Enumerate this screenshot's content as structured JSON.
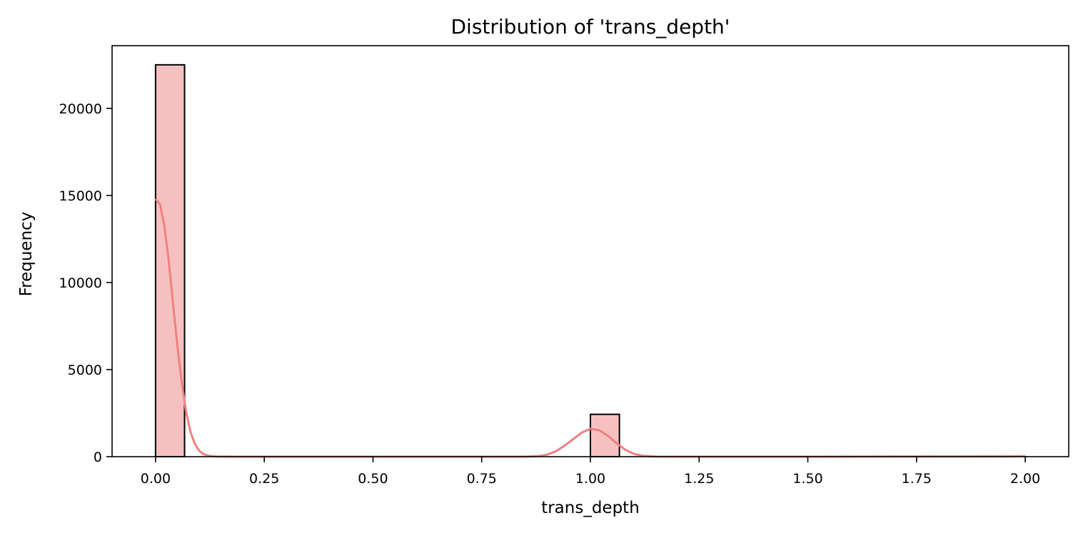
{
  "chart_data": {
    "type": "bar",
    "title": "Distribution of 'trans_depth'",
    "xlabel": "trans_depth",
    "ylabel": "Frequency",
    "xlim": [
      -0.1,
      2.1
    ],
    "ylim": [
      0,
      23600
    ],
    "x_ticks": [
      0.0,
      0.25,
      0.5,
      0.75,
      1.0,
      1.25,
      1.5,
      1.75,
      2.0
    ],
    "x_tick_labels": [
      "0.00",
      "0.25",
      "0.50",
      "0.75",
      "1.00",
      "1.25",
      "1.50",
      "1.75",
      "2.00"
    ],
    "y_ticks": [
      0,
      5000,
      10000,
      15000,
      20000
    ],
    "y_tick_labels": [
      "0",
      "5000",
      "10000",
      "15000",
      "20000"
    ],
    "bin_width": 0.0667,
    "bins": [
      {
        "x0": 0.0,
        "count": 22500
      },
      {
        "x0": 1.0,
        "count": 2430
      },
      {
        "x0": 1.9333,
        "count": 2
      }
    ],
    "kde_curve": {
      "x": [
        0.0,
        0.01,
        0.02,
        0.03,
        0.04,
        0.05,
        0.06,
        0.07,
        0.08,
        0.09,
        0.1,
        0.11,
        0.12,
        0.13,
        0.14,
        0.16,
        0.18,
        0.22,
        0.5,
        0.85,
        0.88,
        0.9,
        0.92,
        0.94,
        0.96,
        0.98,
        1.0,
        1.02,
        1.04,
        1.06,
        1.08,
        1.1,
        1.12,
        1.15,
        1.5,
        2.0
      ],
      "y": [
        14800,
        14500,
        13300,
        11300,
        8800,
        6400,
        4300,
        2600,
        1450,
        750,
        350,
        150,
        60,
        25,
        10,
        3,
        1,
        0,
        0,
        0,
        30,
        110,
        300,
        620,
        1000,
        1380,
        1600,
        1520,
        1200,
        780,
        400,
        160,
        50,
        5,
        0,
        20
      ]
    },
    "colors": {
      "bar_fill": "#f7c0c0",
      "bar_edge": "#000000",
      "kde_line": "#f08080"
    },
    "grid": false,
    "legend": "none"
  }
}
